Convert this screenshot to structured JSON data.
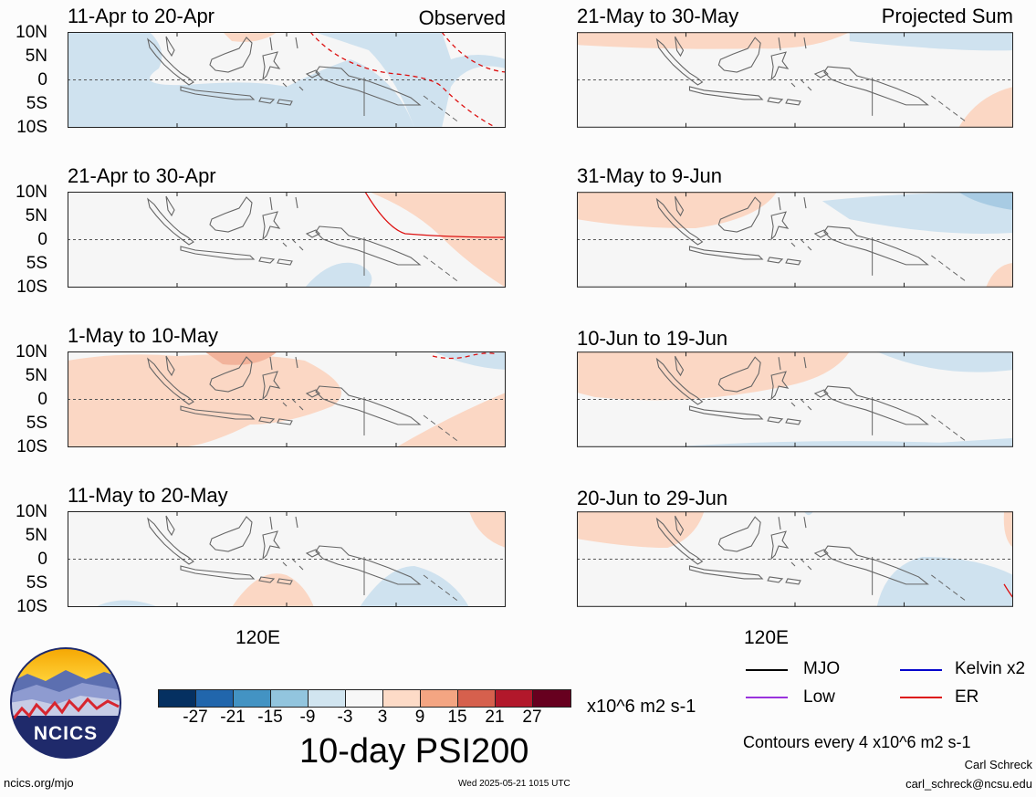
{
  "panels": [
    {
      "title": "11-Apr to 20-Apr",
      "tag": "Observed"
    },
    {
      "title": "21-Apr to 30-Apr",
      "tag": ""
    },
    {
      "title": "1-May to 10-May",
      "tag": ""
    },
    {
      "title": "11-May to 20-May",
      "tag": ""
    },
    {
      "title": "21-May to 30-May",
      "tag": "Projected Sum"
    },
    {
      "title": "31-May to 9-Jun",
      "tag": ""
    },
    {
      "title": "10-Jun to 19-Jun",
      "tag": ""
    },
    {
      "title": "20-Jun to 29-Jun",
      "tag": ""
    }
  ],
  "axis": {
    "y_ticks": [
      "10N",
      "5N",
      "0",
      "5S",
      "10S"
    ],
    "x_tick": "120E"
  },
  "colorbar": {
    "colors": [
      "#053061",
      "#2166ac",
      "#4393c3",
      "#92c5de",
      "#d1e5f0",
      "#f7f7f7",
      "#fddbc7",
      "#f4a582",
      "#d6604d",
      "#b2182b",
      "#67001f"
    ],
    "ticks": [
      "-27",
      "-21",
      "-15",
      "-9",
      "-3",
      "3",
      "9",
      "15",
      "21",
      "27"
    ],
    "units": "x10^6 m2 s-1",
    "title": "10-day PSI200"
  },
  "legend": {
    "items": [
      {
        "label": "MJO",
        "color": "#000000"
      },
      {
        "label": "Kelvin x2",
        "color": "#0000cc"
      },
      {
        "label": "Low",
        "color": "#9933dd"
      },
      {
        "label": "ER",
        "color": "#dd1111"
      }
    ],
    "contour_note": "Contours every 4 x10^6 m2 s-1"
  },
  "logo": {
    "text": "NCICS"
  },
  "footer": {
    "url": "ncics.org/mjo",
    "timestamp": "Wed 2025-05-21 1015 UTC",
    "author": "Carl Schreck",
    "email": "carl_schreck@ncsu.edu"
  }
}
